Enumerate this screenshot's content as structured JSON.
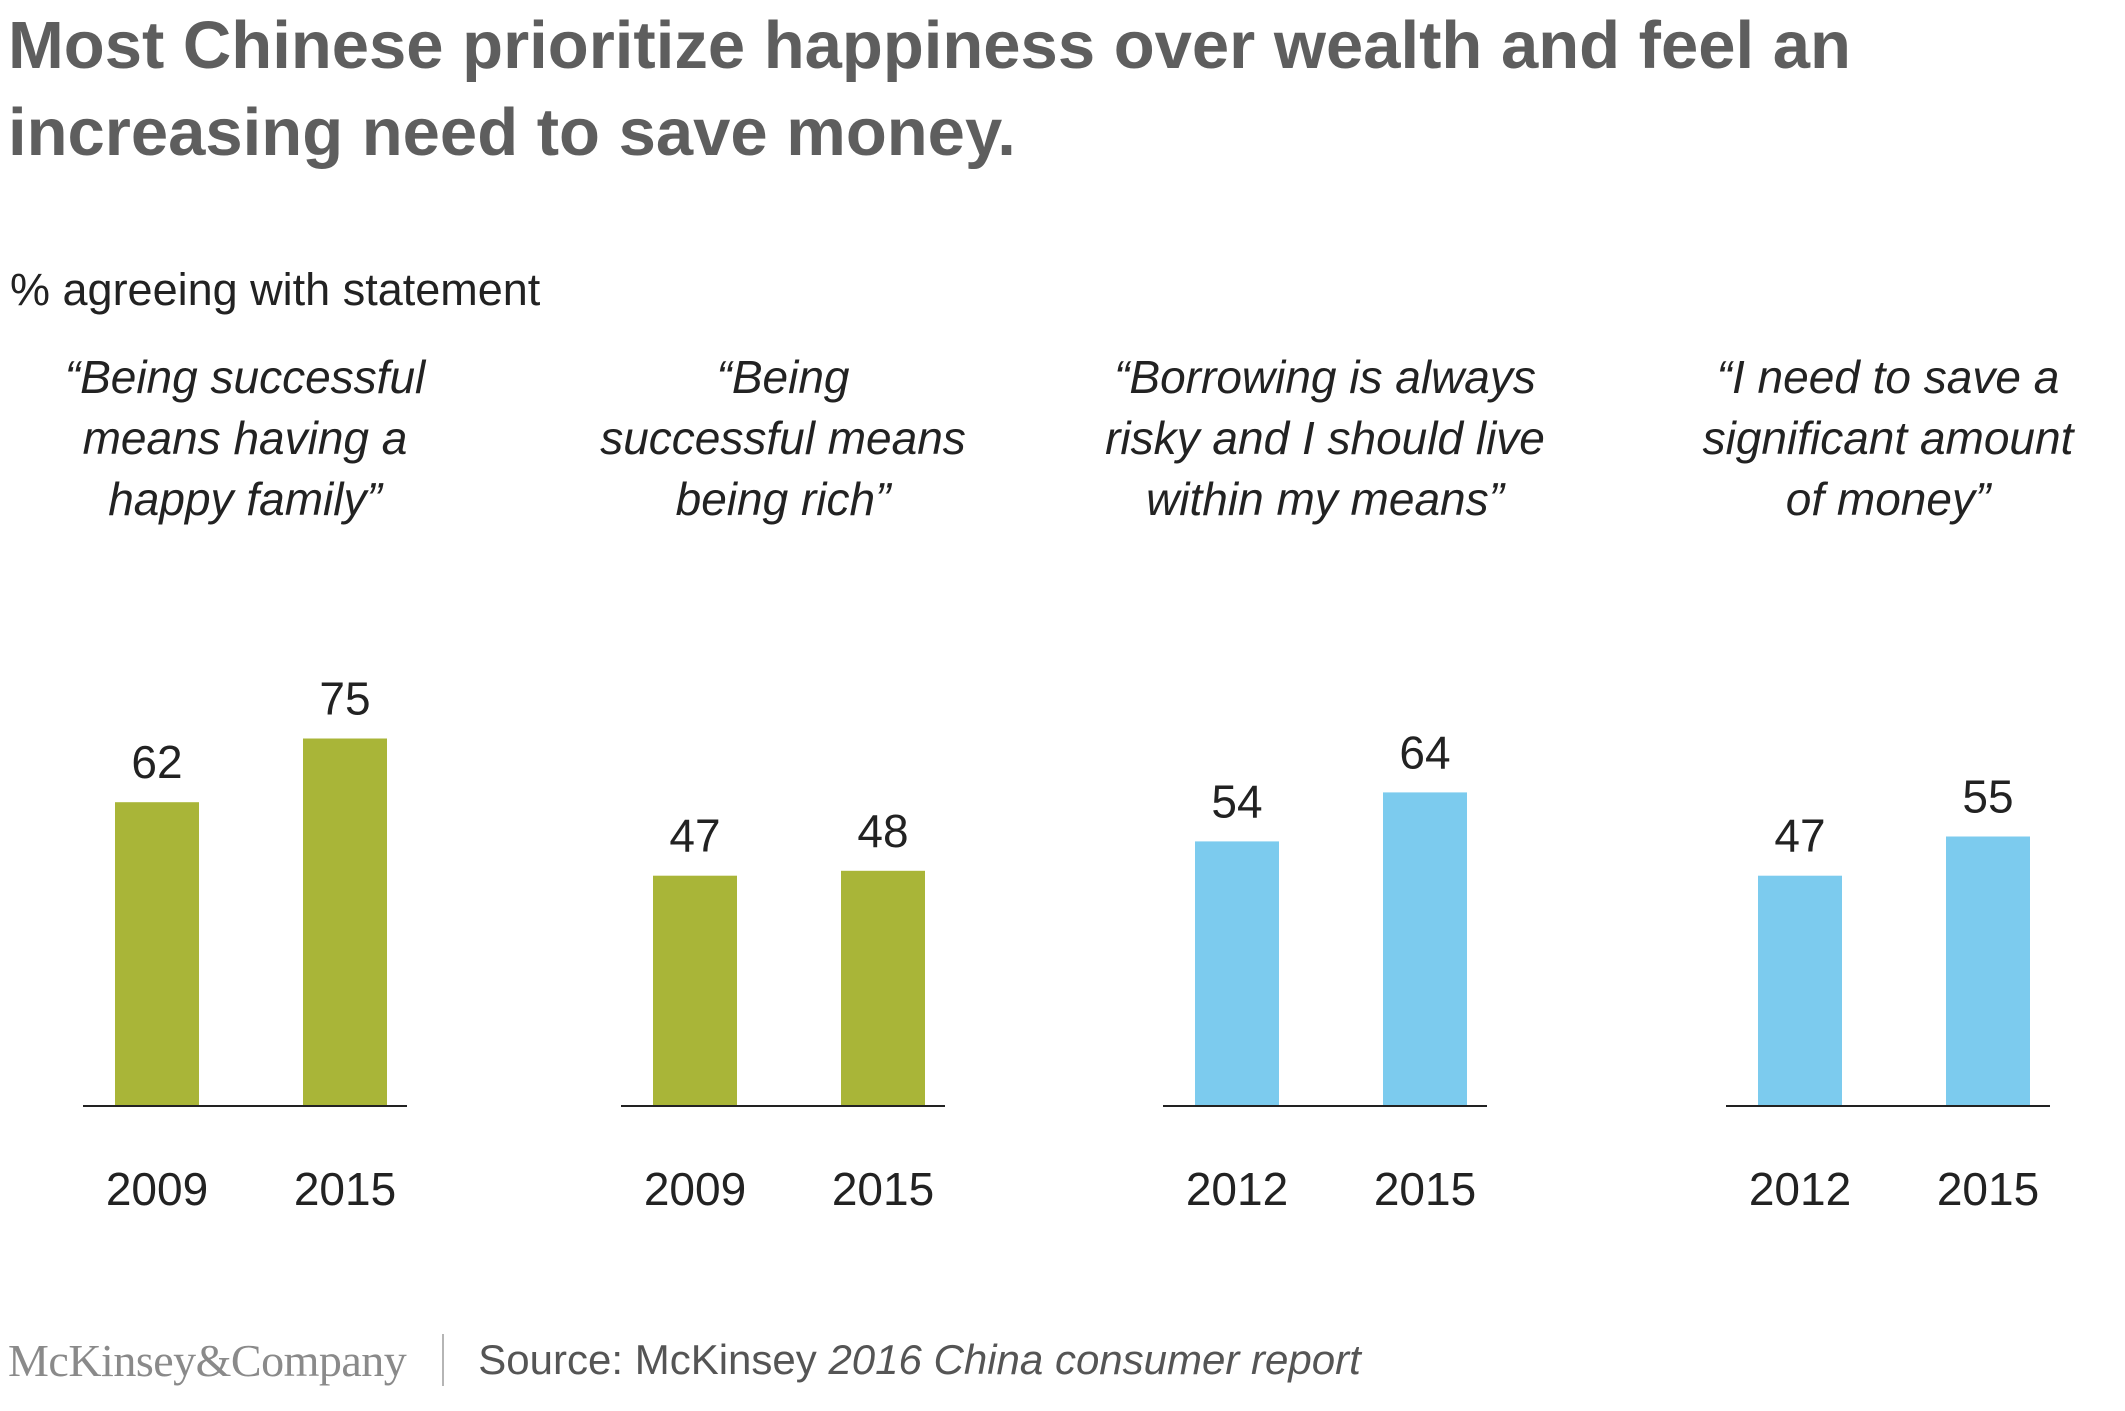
{
  "title": "Most Chinese prioritize happiness over wealth and feel an increasing need to save money.",
  "subtitle": "% agreeing with statement",
  "colors": {
    "green": "#a9b538",
    "blue": "#7ccbee",
    "axis": "#222222",
    "text": "#222222"
  },
  "chart_data": [
    {
      "type": "bar",
      "title": "“Being successful means having a happy family”",
      "title_lines": [
        "“Being successful",
        "means having a",
        "happy family”"
      ],
      "categories": [
        "2009",
        "2015"
      ],
      "values": [
        62,
        75
      ],
      "color": "green",
      "ylim": [
        0,
        100
      ]
    },
    {
      "type": "bar",
      "title": "“Being successful means being rich”",
      "title_lines": [
        "“Being",
        "successful means",
        "being rich”"
      ],
      "categories": [
        "2009",
        "2015"
      ],
      "values": [
        47,
        48
      ],
      "color": "green",
      "ylim": [
        0,
        100
      ]
    },
    {
      "type": "bar",
      "title": "“Borrowing is always risky and I should live within my means”",
      "title_lines": [
        "“Borrowing is always",
        "risky and I should live",
        "within my means”"
      ],
      "categories": [
        "2012",
        "2015"
      ],
      "values": [
        54,
        64
      ],
      "color": "blue",
      "ylim": [
        0,
        100
      ]
    },
    {
      "type": "bar",
      "title": "“I need to save a significant amount of money”",
      "title_lines": [
        "“I need to save a",
        "significant amount",
        "of money”"
      ],
      "categories": [
        "2012",
        "2015"
      ],
      "values": [
        47,
        55
      ],
      "color": "blue",
      "ylim": [
        0,
        100
      ]
    }
  ],
  "footer": {
    "logo": "McKinsey&Company",
    "source_prefix": "Source: McKinsey ",
    "source_title": "2016 China consumer report"
  }
}
